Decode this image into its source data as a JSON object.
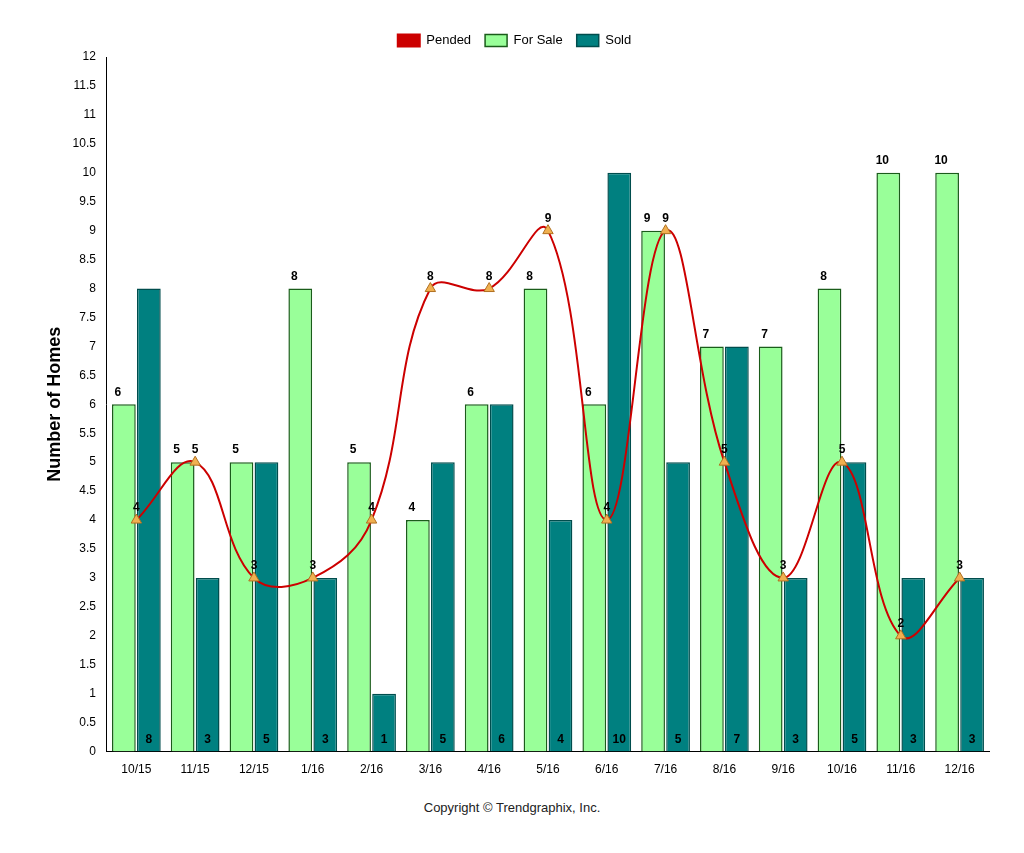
{
  "chart_data": {
    "type": "bar",
    "categories": [
      "10/15",
      "11/15",
      "12/15",
      "1/16",
      "2/16",
      "3/16",
      "4/16",
      "5/16",
      "6/16",
      "7/16",
      "8/16",
      "9/16",
      "10/16",
      "11/16",
      "12/16"
    ],
    "series": [
      {
        "name": "For Sale",
        "type": "bar",
        "color": "#99ff99",
        "values": [
          6,
          5,
          5,
          8,
          5,
          4,
          6,
          8,
          6,
          9,
          7,
          7,
          8,
          10,
          10
        ]
      },
      {
        "name": "Sold",
        "type": "bar",
        "color": "#008080",
        "values": [
          8,
          3,
          5,
          3,
          1,
          5,
          6,
          4,
          10,
          5,
          7,
          3,
          5,
          3,
          3
        ]
      },
      {
        "name": "Pended",
        "type": "line",
        "color": "#cc0000",
        "marker": "triangle",
        "line_style": "solid",
        "values": [
          4,
          5,
          3,
          3,
          4,
          8,
          8,
          9,
          4,
          9,
          5,
          3,
          5,
          2,
          3
        ]
      }
    ],
    "y_label": "Number of Homes",
    "ylim": [
      0,
      12
    ],
    "yticks": [
      0,
      0.5,
      1,
      1.5,
      2,
      2.5,
      3,
      3.5,
      4,
      4.5,
      5,
      5.5,
      6,
      6.5,
      7,
      7.5,
      8,
      8.5,
      9,
      9.5,
      10,
      10.5,
      11,
      11.5,
      12
    ],
    "grid": false,
    "legend": "top",
    "data_labels": true,
    "footer": "Copyright © Trendgraphix, Inc."
  }
}
